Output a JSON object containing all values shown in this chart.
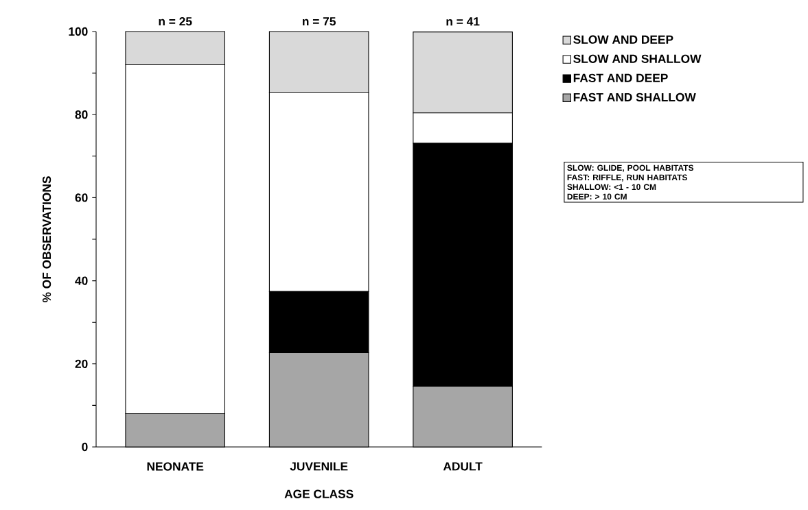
{
  "chart_data": {
    "type": "bar",
    "stacked": true,
    "categories": [
      "NEONATE",
      "JUVENILE",
      "ADULT"
    ],
    "xlabel": "AGE CLASS",
    "ylabel": "% OF OBSERVATIONS",
    "ylim": [
      0,
      100
    ],
    "yticks": [
      0,
      {
        "value": 10,
        "label": null
      },
      20,
      {
        "value": 30,
        "label": null
      },
      40,
      {
        "value": 50,
        "label": null
      },
      60,
      {
        "value": 70,
        "label": null
      },
      80,
      {
        "value": 90,
        "label": null
      },
      100
    ],
    "series": [
      {
        "name": "FAST AND SHALLOW",
        "color": "#a6a6a6",
        "values": [
          8,
          22.7,
          14.6
        ]
      },
      {
        "name": "FAST AND DEEP",
        "color": "#000000",
        "values": [
          0,
          14.7,
          58.5
        ]
      },
      {
        "name": "SLOW AND SHALLOW",
        "color": "#ffffff",
        "values": [
          84,
          48,
          7.3
        ]
      },
      {
        "name": "SLOW AND DEEP",
        "color": "#d9d9d9",
        "values": [
          8,
          14.6,
          19.5
        ]
      }
    ],
    "legend": "right",
    "annotations": [
      "n = 25",
      "n = 75",
      "n = 41",
      "SLOW:   GLIDE, POOL HABITATS",
      "FAST:   RIFFLE, RUN HABITATS",
      "SHALLOW:  <1 - 10 CM",
      "DEEP:  > 10 CM"
    ]
  }
}
